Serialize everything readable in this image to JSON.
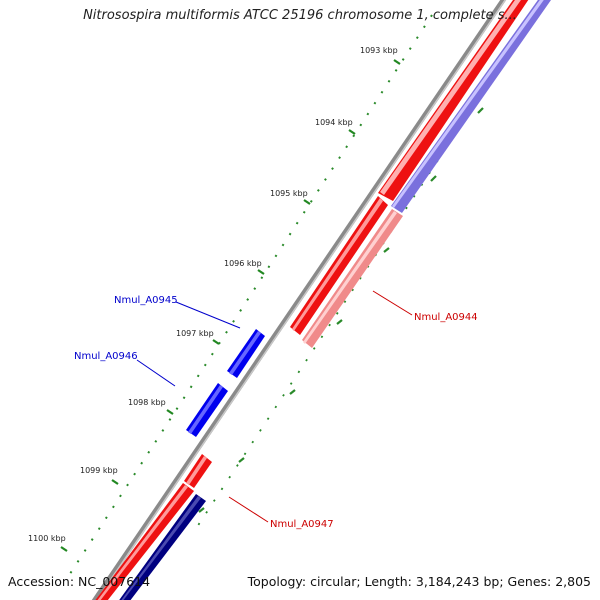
{
  "title": "Nitrosospira multiformis ATCC 25196 chromosome 1, complete s...",
  "footer": {
    "accession": "Accession: NC_007614",
    "summary": "Topology: circular; Length: 3,184,243 bp; Genes: 2,805"
  },
  "ticks": [
    "1093 kbp",
    "1094 kbp",
    "1095 kbp",
    "1096 kbp",
    "1097 kbp",
    "1098 kbp",
    "1099 kbp",
    "1100 kbp"
  ],
  "genes": [
    {
      "name": "Nmul_A0945",
      "strand": "forward",
      "color": "#0000cc"
    },
    {
      "name": "Nmul_A0946",
      "strand": "forward",
      "color": "#0000cc"
    },
    {
      "name": "Nmul_A0944",
      "strand": "reverse",
      "color": "#cc0000"
    },
    {
      "name": "Nmul_A0947",
      "strand": "reverse",
      "color": "#cc0000"
    }
  ],
  "colors": {
    "forward_gene": "#0000ee",
    "reverse_gene": "#ee0000",
    "backbone": "#888888",
    "tick_major": "#228822",
    "tick_minor": "#339933",
    "cds_reverse": "#ee2222",
    "cds_reverse_light": "#f08080",
    "cds_forward_light": "#7a70dd",
    "cds_forward_dark": "#000080"
  }
}
